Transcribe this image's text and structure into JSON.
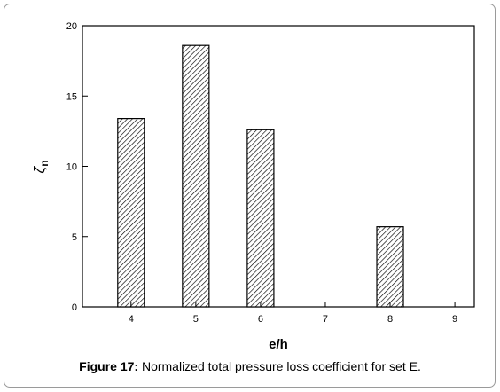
{
  "chart_data": {
    "type": "bar",
    "x": [
      4,
      5,
      6,
      7,
      8,
      9
    ],
    "categories": [
      "4",
      "5",
      "6",
      "7",
      "8",
      "9"
    ],
    "values": [
      13.4,
      18.6,
      12.6,
      0,
      5.7,
      0
    ],
    "bars": [
      {
        "x": 4,
        "value": 13.4
      },
      {
        "x": 5,
        "value": 18.6
      },
      {
        "x": 6,
        "value": 12.6
      },
      {
        "x": 8,
        "value": 5.7
      }
    ],
    "xlabel": "e/h",
    "ylabel": "ζn",
    "ylabel_main": "ζ",
    "ylabel_sub": "n",
    "xlim": [
      3.25,
      9.3
    ],
    "ylim": [
      0,
      20
    ],
    "yticks": [
      0,
      5,
      10,
      15,
      20
    ],
    "xticks": [
      4,
      5,
      6,
      7,
      8,
      9
    ],
    "bar_fill": "hatched",
    "grid": false,
    "colors": {
      "bar_stroke": "#000000",
      "hatch": "#000000",
      "axis": "#000000"
    }
  },
  "caption": {
    "label": "Figure 17:",
    "text": " Normalized total pressure loss coefficient for set E."
  }
}
